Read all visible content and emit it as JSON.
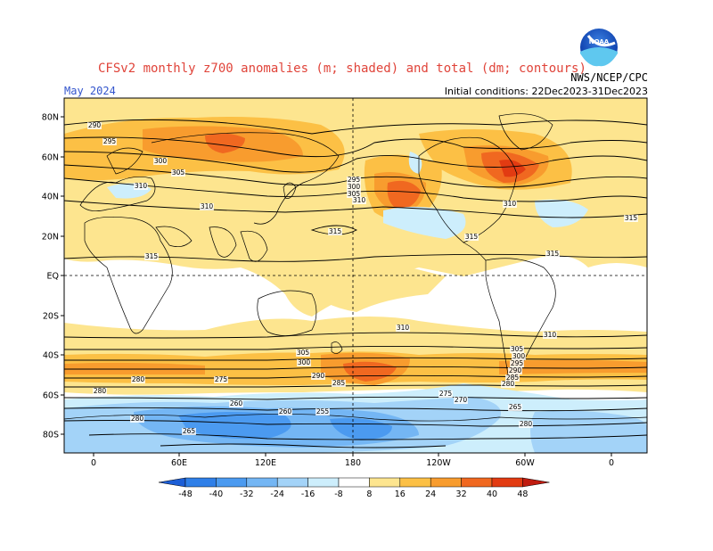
{
  "title": "CFSv2 monthly z700 anomalies (m; shaded) and total (dm; contours)",
  "valid_month": "May 2024",
  "initial_conditions": "Initial conditions: 22Dec2023-31Dec2023",
  "agency": "NWS/NCEP/CPC",
  "logo_text": "NOAA",
  "lat_ticks": [
    "80N",
    "60N",
    "40N",
    "20N",
    "EQ",
    "20S",
    "40S",
    "60S",
    "80S"
  ],
  "lon_ticks": [
    "0",
    "60E",
    "120E",
    "180",
    "120W",
    "60W",
    "0"
  ],
  "colorbar": {
    "labels": [
      "-48",
      "-40",
      "-32",
      "-24",
      "-16",
      "-8",
      "8",
      "16",
      "24",
      "32",
      "40",
      "48"
    ],
    "colors": [
      "#1c5ed6",
      "#2f7fe8",
      "#4b9af0",
      "#74b6f4",
      "#a3d3f8",
      "#cdeefc",
      "#ffffff",
      "#fde58f",
      "#fcc045",
      "#f89c2e",
      "#f06820",
      "#e23b12",
      "#c01c10"
    ]
  },
  "contour_labels": [
    {
      "text": "290"
    },
    {
      "text": "295"
    },
    {
      "text": "300"
    },
    {
      "text": "305"
    },
    {
      "text": "310"
    },
    {
      "text": "310"
    },
    {
      "text": "315"
    },
    {
      "text": "280"
    },
    {
      "text": "280"
    },
    {
      "text": "295"
    },
    {
      "text": "300"
    },
    {
      "text": "305"
    },
    {
      "text": "310"
    },
    {
      "text": "315"
    },
    {
      "text": "315"
    },
    {
      "text": "315"
    },
    {
      "text": "315"
    },
    {
      "text": "310"
    },
    {
      "text": "310"
    },
    {
      "text": "310"
    },
    {
      "text": "305"
    },
    {
      "text": "300"
    },
    {
      "text": "295"
    },
    {
      "text": "290"
    },
    {
      "text": "285"
    },
    {
      "text": "280"
    },
    {
      "text": "275"
    },
    {
      "text": "270"
    },
    {
      "text": "265"
    },
    {
      "text": "260"
    },
    {
      "text": "255"
    },
    {
      "text": "260"
    },
    {
      "text": "265"
    },
    {
      "text": "275"
    },
    {
      "text": "280"
    },
    {
      "text": "285"
    },
    {
      "text": "290"
    },
    {
      "text": "300"
    },
    {
      "text": "305"
    },
    {
      "text": "280"
    }
  ]
}
